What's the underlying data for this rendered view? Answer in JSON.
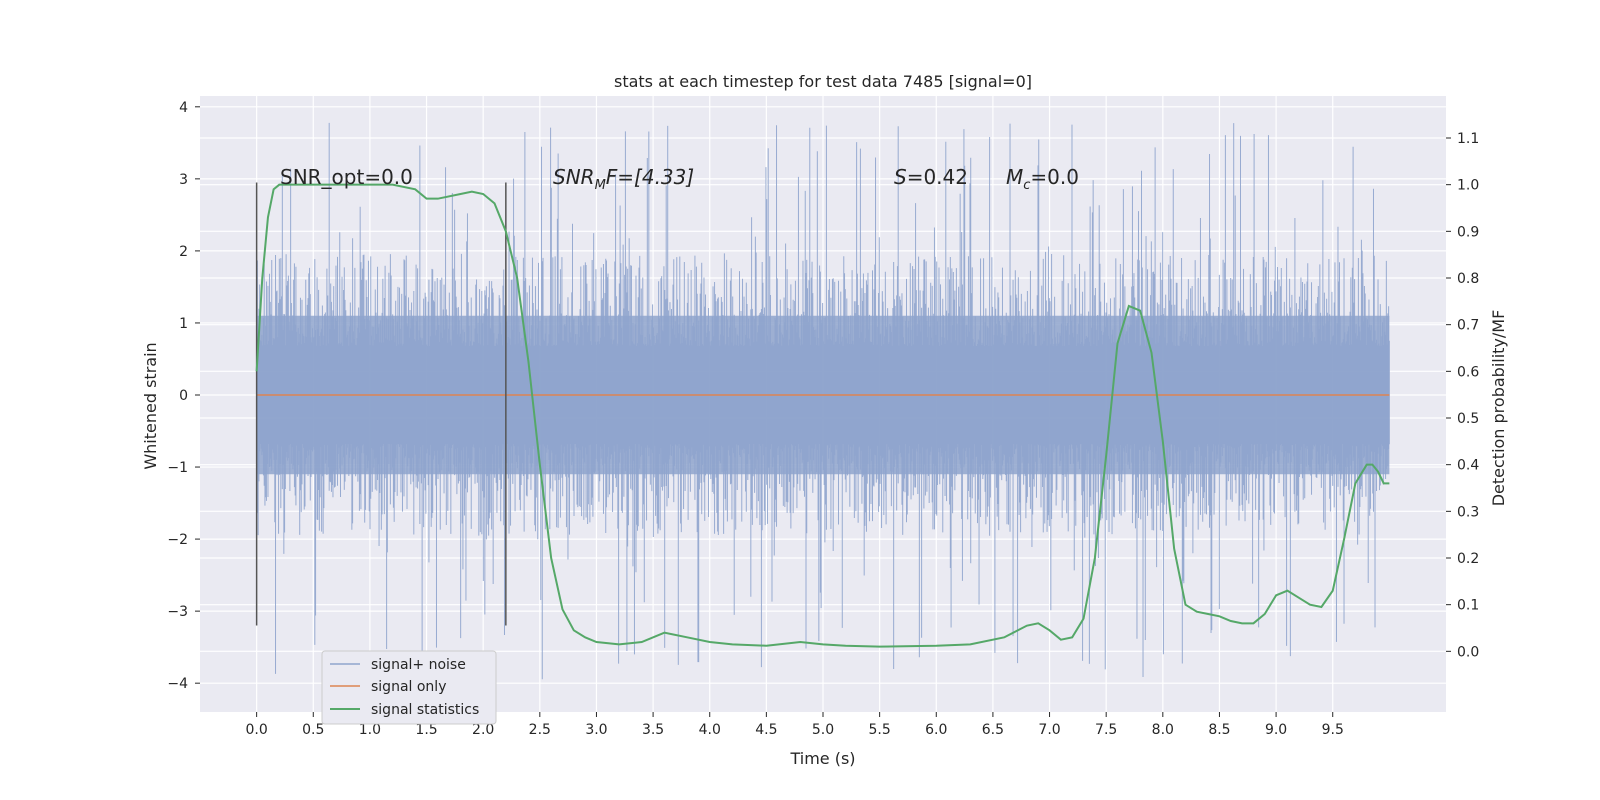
{
  "chart_data": {
    "type": "line",
    "title": "stats at each timestep for test data 7485 [signal=0]",
    "xlabel": "Time (s)",
    "ylabel_left": "Whitened strain",
    "ylabel_right": "Detection probability/MF",
    "xlim": [
      -0.5,
      10.5
    ],
    "ylim_left": [
      -4.4,
      4.15
    ],
    "ylim_right": [
      -0.13,
      1.19
    ],
    "x_ticks": [
      "0.0",
      "0.5",
      "1.0",
      "1.5",
      "2.0",
      "2.5",
      "3.0",
      "3.5",
      "4.0",
      "4.5",
      "5.0",
      "5.5",
      "6.0",
      "6.5",
      "7.0",
      "7.5",
      "8.0",
      "8.5",
      "9.0",
      "9.5"
    ],
    "y_ticks_left": [
      "4",
      "3",
      "2",
      "1",
      "0",
      "−1",
      "−2",
      "−3",
      "−4"
    ],
    "y_ticks_right": [
      "1.1",
      "1.0",
      "0.9",
      "0.8",
      "0.7",
      "0.6",
      "0.5",
      "0.4",
      "0.3",
      "0.2",
      "0.1",
      "0.0"
    ],
    "grid": true,
    "legend_position": "bottom-left",
    "annotations": {
      "snr_opt": "SNR_opt=0.0",
      "snr_mf_main": "SNR",
      "snr_mf_sub": "M",
      "snr_mf_rest": "F=[4.33]",
      "s_main": "S",
      "s_rest": "=0.42",
      "mc_main": "M",
      "mc_sub": "c",
      "mc_rest": "=0.0"
    },
    "vertical_markers_x": [
      0.0,
      2.2
    ],
    "series": [
      {
        "name": "signal+ noise",
        "color": "#8fa4cd",
        "x_range": [
          0.0,
          10.0
        ],
        "typical_range": [
          -1.7,
          1.7
        ],
        "min": -3.95,
        "max": 3.8
      },
      {
        "name": "signal only",
        "color": "#dd8452",
        "x": [
          0.0,
          10.0
        ],
        "values": [
          0.0,
          0.0
        ]
      },
      {
        "name": "signal statistics",
        "color": "#55a868",
        "x": [
          0.0,
          0.05,
          0.1,
          0.15,
          0.2,
          0.3,
          0.5,
          0.8,
          1.0,
          1.2,
          1.4,
          1.5,
          1.6,
          1.8,
          1.9,
          2.0,
          2.1,
          2.2,
          2.3,
          2.4,
          2.5,
          2.6,
          2.7,
          2.8,
          2.9,
          3.0,
          3.2,
          3.4,
          3.6,
          3.8,
          4.0,
          4.2,
          4.5,
          4.8,
          5.0,
          5.2,
          5.5,
          6.0,
          6.3,
          6.6,
          6.8,
          6.9,
          7.0,
          7.1,
          7.2,
          7.3,
          7.4,
          7.5,
          7.6,
          7.7,
          7.8,
          7.9,
          8.0,
          8.1,
          8.2,
          8.3,
          8.4,
          8.5,
          8.6,
          8.7,
          8.8,
          8.9,
          9.0,
          9.1,
          9.2,
          9.3,
          9.4,
          9.5,
          9.6,
          9.7,
          9.8,
          9.85,
          9.9,
          9.95,
          10.0
        ],
        "values": [
          0.6,
          0.8,
          0.93,
          0.99,
          1.0,
          1.0,
          1.0,
          1.0,
          1.0,
          1.0,
          0.99,
          0.97,
          0.97,
          0.98,
          0.985,
          0.98,
          0.96,
          0.9,
          0.8,
          0.62,
          0.4,
          0.2,
          0.09,
          0.045,
          0.03,
          0.02,
          0.015,
          0.02,
          0.04,
          0.03,
          0.02,
          0.015,
          0.012,
          0.02,
          0.015,
          0.012,
          0.01,
          0.012,
          0.015,
          0.03,
          0.055,
          0.06,
          0.045,
          0.025,
          0.03,
          0.07,
          0.2,
          0.42,
          0.66,
          0.74,
          0.73,
          0.64,
          0.45,
          0.22,
          0.1,
          0.085,
          0.08,
          0.075,
          0.065,
          0.06,
          0.06,
          0.08,
          0.12,
          0.13,
          0.115,
          0.1,
          0.095,
          0.13,
          0.24,
          0.36,
          0.4,
          0.4,
          0.385,
          0.36,
          0.36
        ]
      }
    ]
  }
}
